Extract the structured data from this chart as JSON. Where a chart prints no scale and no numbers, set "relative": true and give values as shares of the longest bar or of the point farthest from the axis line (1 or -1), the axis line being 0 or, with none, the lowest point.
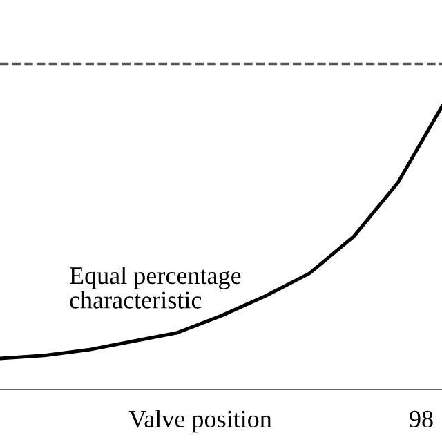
{
  "chart_data": {
    "type": "line",
    "relative": true,
    "xlabel": "Valve position",
    "categories": [
      null,
      null,
      null,
      null,
      null,
      null,
      null,
      null,
      null,
      null,
      null
    ],
    "series": [
      {
        "color": "#000000",
        "values": [
          0.11,
          0.12,
          0.14,
          0.17,
          0.2,
          0.26,
          0.33,
          0.41,
          0.54,
          0.73,
          1
        ]
      }
    ],
    "ref_lines": [
      {
        "axis": "y",
        "value": 1.15,
        "label": null,
        "color": "#555555",
        "line_style": "dashed"
      }
    ],
    "annotations": [
      "Equal percentage\ncharacteristic",
      "98"
    ],
    "marker": "none",
    "line_style": "solid",
    "grid": false,
    "legend": false
  }
}
